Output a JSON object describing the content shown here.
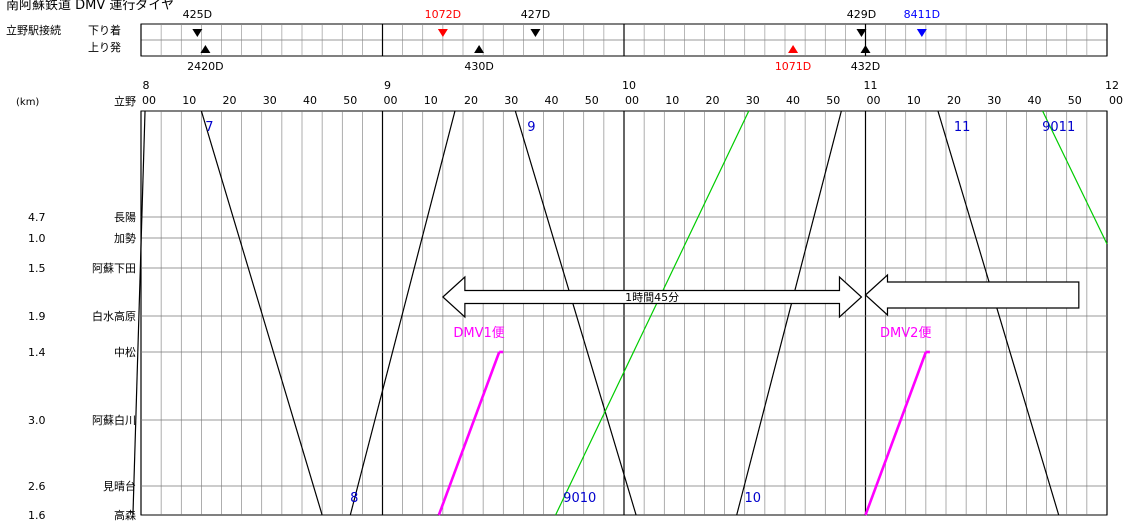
{
  "title": "南阿蘇鉄道 DMV 運行ダイヤ",
  "connection": {
    "label": "立野駅接続",
    "row_arrive": "下り着",
    "row_depart": "上り発",
    "trains": [
      {
        "name": "425D",
        "time": "8:14",
        "dir": "down",
        "row": "top",
        "color": "#000000"
      },
      {
        "name": "1072D",
        "time": "9:15",
        "dir": "down",
        "row": "top",
        "color": "#ff0000"
      },
      {
        "name": "427D",
        "time": "9:38",
        "dir": "down",
        "row": "top",
        "color": "#000000"
      },
      {
        "name": "429D",
        "time": "10:59",
        "dir": "down",
        "row": "top",
        "color": "#000000"
      },
      {
        "name": "8411D",
        "time": "11:14",
        "dir": "down",
        "row": "top",
        "color": "#0000ff"
      },
      {
        "name": "2420D",
        "time": "8:16",
        "dir": "up",
        "row": "bottom",
        "color": "#000000"
      },
      {
        "name": "430D",
        "time": "9:24",
        "dir": "up",
        "row": "bottom",
        "color": "#000000"
      },
      {
        "name": "1071D",
        "time": "10:42",
        "dir": "up",
        "row": "bottom",
        "color": "#ff0000"
      },
      {
        "name": "432D",
        "time": "11:00",
        "dir": "up",
        "row": "bottom",
        "color": "#000000"
      }
    ]
  },
  "chart_data": {
    "type": "line",
    "title": "南阿蘇鉄道 DMV 運行ダイヤ",
    "x_range": [
      "8:00",
      "12:00"
    ],
    "hour_labels": [
      "8",
      "9",
      "10",
      "11",
      "12"
    ],
    "minute_labels": [
      "00",
      "10",
      "20",
      "30",
      "40",
      "50"
    ],
    "km_unit": "(km)",
    "stations": [
      {
        "name": "立野",
        "km": ""
      },
      {
        "name": "長陽",
        "km": "4.7"
      },
      {
        "name": "加勢",
        "km": "1.0"
      },
      {
        "name": "阿蘇下田",
        "km": "1.5"
      },
      {
        "name": "白水高原",
        "km": "1.9"
      },
      {
        "name": "中松",
        "km": "1.4"
      },
      {
        "name": "阿蘇白川",
        "km": "3.0"
      },
      {
        "name": "見晴台",
        "km": "2.6"
      },
      {
        "name": "高森",
        "km": "1.6"
      }
    ],
    "series": [
      {
        "name": "",
        "color": "#000000",
        "points": [
          [
            "7:58",
            8
          ],
          [
            "8:01",
            0
          ]
        ]
      },
      {
        "name": "7",
        "color": "#000000",
        "points": [
          [
            "8:15",
            0
          ],
          [
            "8:45",
            8
          ]
        ]
      },
      {
        "name": "8",
        "color": "#000000",
        "points": [
          [
            "8:52",
            8
          ],
          [
            "9:18",
            0
          ]
        ]
      },
      {
        "name": "9",
        "color": "#000000",
        "points": [
          [
            "9:33",
            0
          ],
          [
            "10:03",
            8
          ]
        ]
      },
      {
        "name": "10",
        "color": "#000000",
        "points": [
          [
            "10:28",
            8
          ],
          [
            "10:54",
            0
          ]
        ]
      },
      {
        "name": "11",
        "color": "#000000",
        "points": [
          [
            "11:18",
            0
          ],
          [
            "11:48",
            8
          ]
        ]
      },
      {
        "name": "9010",
        "color": "#00cc00",
        "points": [
          [
            "9:43",
            8
          ],
          [
            "10:31",
            0
          ]
        ]
      },
      {
        "name": "9011",
        "color": "#00cc00",
        "points": [
          [
            "11:44",
            0
          ],
          [
            "12:00",
            2.2
          ]
        ]
      },
      {
        "name": "DMV1便",
        "color": "#ff00ff",
        "points": [
          [
            "9:14",
            8
          ],
          [
            "9:29",
            5
          ]
        ]
      },
      {
        "name": "DMV2便",
        "color": "#ff00ff",
        "points": [
          [
            "11:00",
            8
          ],
          [
            "11:15",
            5
          ]
        ]
      }
    ],
    "annotations": {
      "span_label": "1時間45分",
      "arrow1": [
        "9:15",
        "10:59"
      ],
      "arrow2": [
        "11:00",
        "11:53"
      ]
    }
  }
}
